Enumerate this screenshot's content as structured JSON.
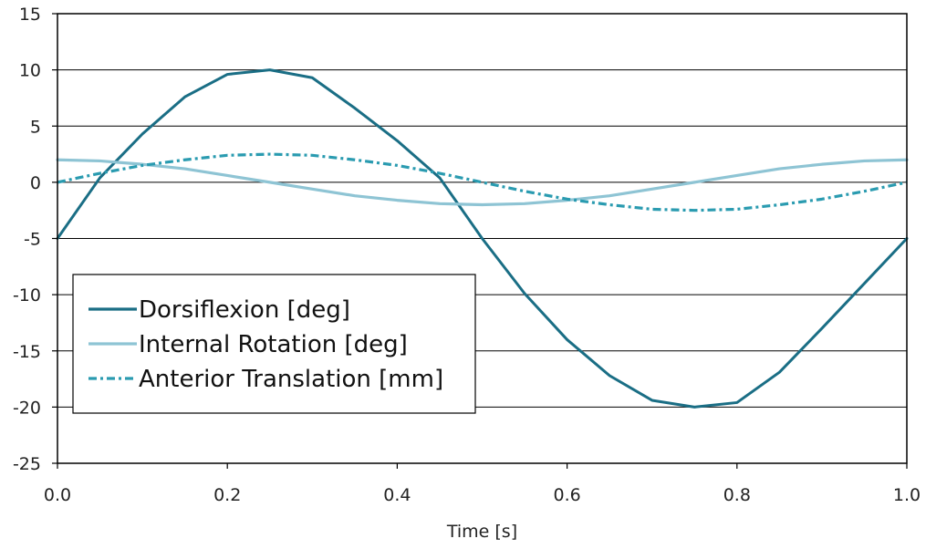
{
  "chart_data": {
    "type": "line",
    "title": "",
    "xlabel": "Time [s]",
    "ylabel": "",
    "xlim": [
      0.0,
      1.0
    ],
    "ylim": [
      -25,
      15
    ],
    "x_ticks": [
      "0.0",
      "0.2",
      "0.4",
      "0.6",
      "0.8",
      "1.0"
    ],
    "x_tick_values": [
      0.0,
      0.2,
      0.4,
      0.6,
      0.8,
      1.0
    ],
    "y_ticks": [
      "15",
      "10",
      "5",
      "0",
      "-5",
      "-10",
      "-15",
      "-20",
      "-25"
    ],
    "y_tick_values": [
      15,
      10,
      5,
      0,
      -5,
      -10,
      -15,
      -20,
      -25
    ],
    "grid": "horizontal",
    "legend_position": "bottom-left",
    "x": [
      0.0,
      0.05,
      0.1,
      0.15,
      0.2,
      0.25,
      0.3,
      0.35,
      0.4,
      0.45,
      0.5,
      0.55,
      0.6,
      0.65,
      0.7,
      0.75,
      0.8,
      0.85,
      0.9,
      0.95,
      1.0
    ],
    "series": [
      {
        "name": "Dorsiflexion [deg]",
        "color": "#1a6e85",
        "style": "solid",
        "values": [
          -5.0,
          0.4,
          4.3,
          7.6,
          9.6,
          10.0,
          9.3,
          6.6,
          3.7,
          0.4,
          -5.0,
          -9.9,
          -14.0,
          -17.2,
          -19.4,
          -20.0,
          -19.6,
          -16.9,
          -13.0,
          -9.0,
          -5.0
        ]
      },
      {
        "name": "Internal Rotation [deg]",
        "color": "#8ec4d4",
        "style": "solid",
        "values": [
          2.0,
          1.9,
          1.6,
          1.2,
          0.6,
          0.0,
          -0.6,
          -1.2,
          -1.6,
          -1.9,
          -2.0,
          -1.9,
          -1.6,
          -1.2,
          -0.6,
          0.0,
          0.6,
          1.2,
          1.6,
          1.9,
          2.0
        ]
      },
      {
        "name": "Anterior Translation [mm]",
        "color": "#2a9bb0",
        "style": "dash-dot",
        "values": [
          0.0,
          0.8,
          1.5,
          2.0,
          2.4,
          2.5,
          2.4,
          2.0,
          1.5,
          0.8,
          0.0,
          -0.8,
          -1.5,
          -2.0,
          -2.4,
          -2.5,
          -2.4,
          -2.0,
          -1.5,
          -0.8,
          0.0
        ]
      }
    ]
  }
}
